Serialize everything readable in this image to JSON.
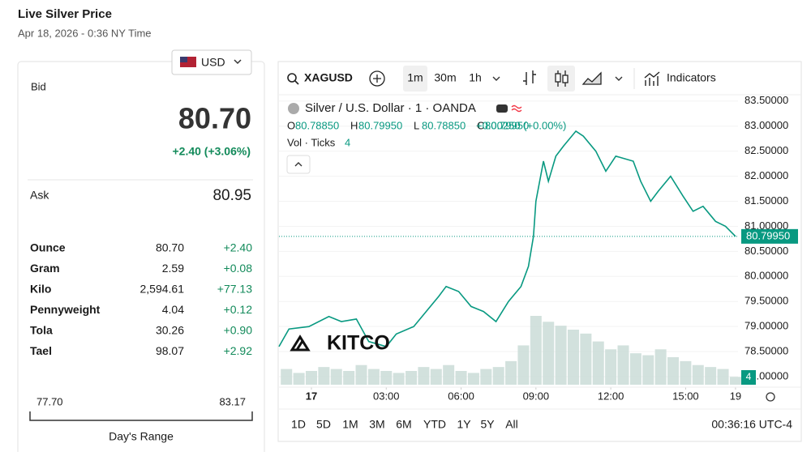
{
  "header": {
    "title": "Live Silver Price",
    "date": "Apr 18, 2026 - 0:36 NY Time"
  },
  "quote": {
    "currency": "USD",
    "bid_label": "Bid",
    "bid": "80.70",
    "change": "+2.40 (+3.06%)",
    "ask_label": "Ask",
    "ask": "80.95"
  },
  "table": {
    "rows": [
      [
        "Ounce",
        "80.70",
        "+2.40"
      ],
      [
        "Gram",
        "2.59",
        "+0.08"
      ],
      [
        "Kilo",
        "2,594.61",
        "+77.13"
      ],
      [
        "Pennyweight",
        "4.04",
        "+0.12"
      ],
      [
        "Tola",
        "30.26",
        "+0.90"
      ],
      [
        "Tael",
        "98.07",
        "+2.92"
      ]
    ]
  },
  "range": {
    "low": "77.70",
    "high": "83.17",
    "label": "Day's Range"
  },
  "chart_panel": {
    "symbol": "XAGUSD",
    "intervals": [
      "1m",
      "30m",
      "1h"
    ],
    "indicators": "Indicators",
    "legend": "Silver / U.S. Dollar · 1 · OANDA",
    "ohlc": [
      [
        "O",
        "80.78850"
      ],
      [
        "H",
        "80.79950"
      ],
      [
        "L",
        "80.78850"
      ],
      [
        "C",
        "80.79950"
      ]
    ],
    "change": "+0.00250 (+0.00%)",
    "vol_label": "Vol · Ticks",
    "vol_value": "4",
    "ranges": [
      "1D",
      "5D",
      "1M",
      "3M",
      "6M",
      "YTD",
      "1Y",
      "5Y",
      "All"
    ],
    "clock": "00:36:16 UTC-4",
    "logo": "KITCO"
  },
  "chart_data": {
    "type": "line",
    "color": "#089981",
    "x": [
      -1.3,
      -0.9,
      -0.1,
      0.7,
      1.2,
      1.8,
      2.3,
      3.0,
      3.4,
      4.1,
      4.6,
      5.1,
      5.4,
      5.9,
      6.4,
      6.9,
      7.4,
      7.9,
      8.4,
      8.7,
      8.9,
      9.0,
      9.3,
      9.5,
      9.8,
      10.1,
      10.6,
      10.9,
      11.4,
      11.8,
      12.2,
      12.9,
      13.2,
      13.6,
      13.9,
      14.4,
      14.9,
      15.3,
      15.7,
      16.2,
      16.6,
      17.0
    ],
    "values": [
      78.6,
      78.95,
      79.0,
      79.2,
      79.1,
      79.15,
      78.7,
      78.6,
      78.85,
      79.0,
      79.3,
      79.6,
      79.8,
      79.7,
      79.4,
      79.3,
      79.1,
      79.5,
      79.8,
      80.2,
      80.8,
      81.5,
      82.3,
      81.9,
      82.4,
      82.6,
      82.9,
      82.8,
      82.5,
      82.1,
      82.4,
      82.3,
      81.9,
      81.5,
      81.7,
      82.0,
      81.6,
      81.3,
      81.4,
      81.1,
      81.0,
      80.8
    ],
    "volume": {
      "color": "#c7d9d5",
      "x": [
        -1,
        -0.5,
        0,
        0.5,
        1,
        1.5,
        2,
        2.5,
        3,
        3.5,
        4,
        4.5,
        5,
        5.5,
        6,
        6.5,
        7,
        7.5,
        8,
        8.5,
        9,
        9.5,
        10,
        10.5,
        11,
        11.5,
        12,
        12.5,
        13,
        13.5,
        14,
        14.5,
        15,
        15.5,
        16,
        16.5,
        17
      ],
      "values": [
        8,
        6,
        7,
        9,
        8,
        7,
        10,
        8,
        7,
        6,
        7,
        9,
        8,
        10,
        7,
        6,
        8,
        9,
        12,
        20,
        35,
        32,
        30,
        28,
        26,
        22,
        18,
        20,
        16,
        15,
        18,
        14,
        12,
        10,
        9,
        8,
        4
      ]
    },
    "last": {
      "value": 80.7995,
      "label": "80.79950"
    },
    "xlim": [
      -1.3,
      17.1
    ],
    "ylim": [
      77.79,
      83.61
    ],
    "xticks": [
      {
        "value": 0,
        "label": "17"
      },
      {
        "value": 3,
        "label": "03:00"
      },
      {
        "value": 6,
        "label": "06:00"
      },
      {
        "value": 9,
        "label": "09:00"
      },
      {
        "value": 12,
        "label": "12:00"
      },
      {
        "value": 15,
        "label": "15:00"
      },
      {
        "value": 17,
        "label": "19"
      }
    ],
    "yticks": [
      {
        "value": 83.5,
        "label": "83.50000"
      },
      {
        "value": 83,
        "label": "83.00000"
      },
      {
        "value": 82.5,
        "label": "82.50000"
      },
      {
        "value": 82,
        "label": "82.00000"
      },
      {
        "value": 81.5,
        "label": "81.50000"
      },
      {
        "value": 81,
        "label": "81.00000"
      },
      {
        "value": 80.5,
        "label": "80.50000"
      },
      {
        "value": 80,
        "label": "80.00000"
      },
      {
        "value": 79.5,
        "label": "79.50000"
      },
      {
        "value": 79,
        "label": "79.00000"
      },
      {
        "value": 78.5,
        "label": "78.50000"
      },
      {
        "value": 78,
        "label": "78.00000"
      }
    ]
  }
}
